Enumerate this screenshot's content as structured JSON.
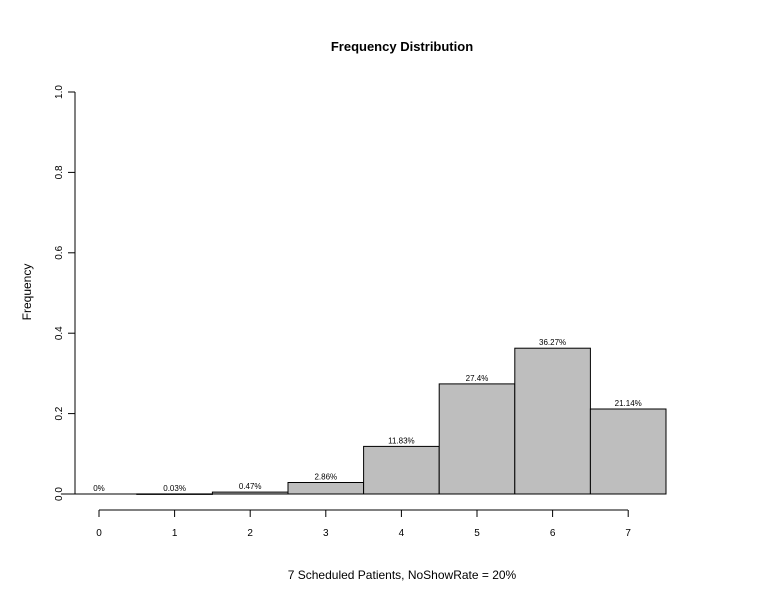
{
  "chart_data": {
    "type": "bar",
    "title": "Frequency Distribution",
    "xlabel": "7 Scheduled Patients,  NoShowRate = 20%",
    "ylabel": "Frequency",
    "categories": [
      "0",
      "1",
      "2",
      "3",
      "4",
      "5",
      "6",
      "7"
    ],
    "values": [
      0.0,
      0.0003,
      0.0047,
      0.0286,
      0.1183,
      0.274,
      0.3627,
      0.2114
    ],
    "data_labels": [
      "0%",
      "0.03%",
      "0.47%",
      "2.86%",
      "11.83%",
      "27.4%",
      "36.27%",
      "21.14%"
    ],
    "ylim": [
      0,
      1
    ],
    "yticks": [
      0.0,
      0.2,
      0.4,
      0.6,
      0.8,
      1.0
    ],
    "ytick_labels": [
      "0.0",
      "0.2",
      "0.4",
      "0.6",
      "0.8",
      "1.0"
    ],
    "grid": false,
    "legend": "none",
    "bar_color": "#bebebe"
  }
}
